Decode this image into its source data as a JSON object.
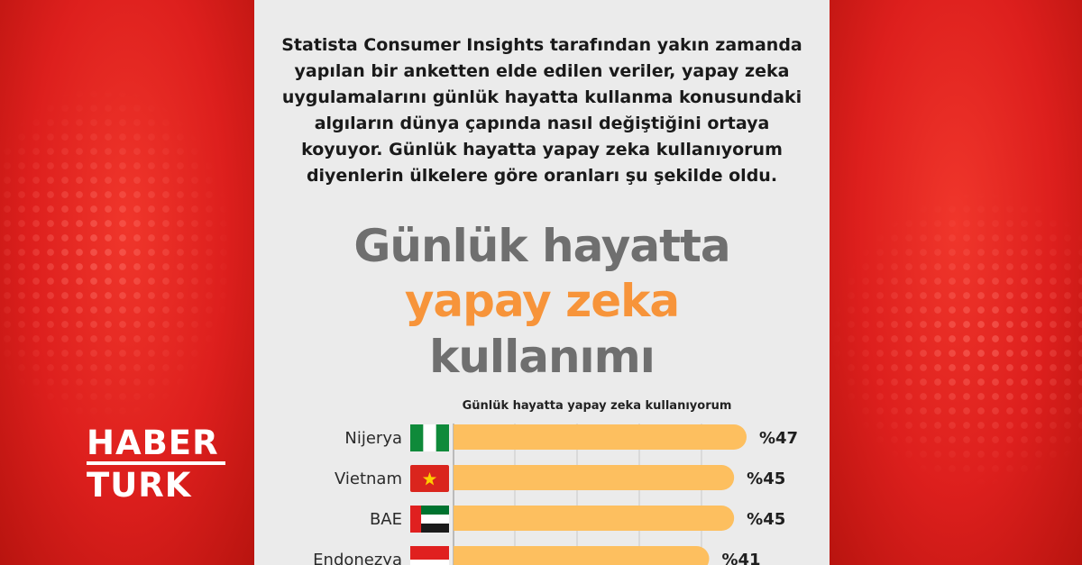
{
  "brand": {
    "line1": "HABER",
    "line2": "TURK"
  },
  "intro_text": "Statista Consumer Insights tarafından yakın zamanda yapılan bir anketten elde edilen veriler, yapay zeka uygulamalarını günlük hayatta kullanma konusundaki algıların dünya çapında nasıl değiştiğini ortaya koyuyor. Günlük hayatta yapay zeka kullanıyorum diyenlerin ülkelere göre oranları şu şekilde oldu.",
  "headline": {
    "line1": "Günlük hayatta",
    "line2": "yapay zeka",
    "line3": "kullanımı"
  },
  "colors": {
    "bar": "#fdbf5f",
    "accent_orange": "#f7943a",
    "headline_gray": "#6f6f6f",
    "brand_red": "#dd1f1d"
  },
  "chart_data": {
    "type": "bar",
    "orientation": "horizontal",
    "title": "Günlük hayatta yapay zeka kullanıyorum",
    "categories": [
      "Nijerya",
      "Vietnam",
      "BAE",
      "Endonezya"
    ],
    "values": [
      47,
      45,
      45,
      41
    ],
    "value_labels": [
      "%47",
      "%45",
      "%45",
      "%41"
    ],
    "flags": [
      "nigeria-flag-icon",
      "vietnam-flag-icon",
      "uae-flag-icon",
      "indonesia-flag-icon"
    ],
    "xlim": [
      0,
      47
    ],
    "grid": true,
    "legend": "none"
  }
}
